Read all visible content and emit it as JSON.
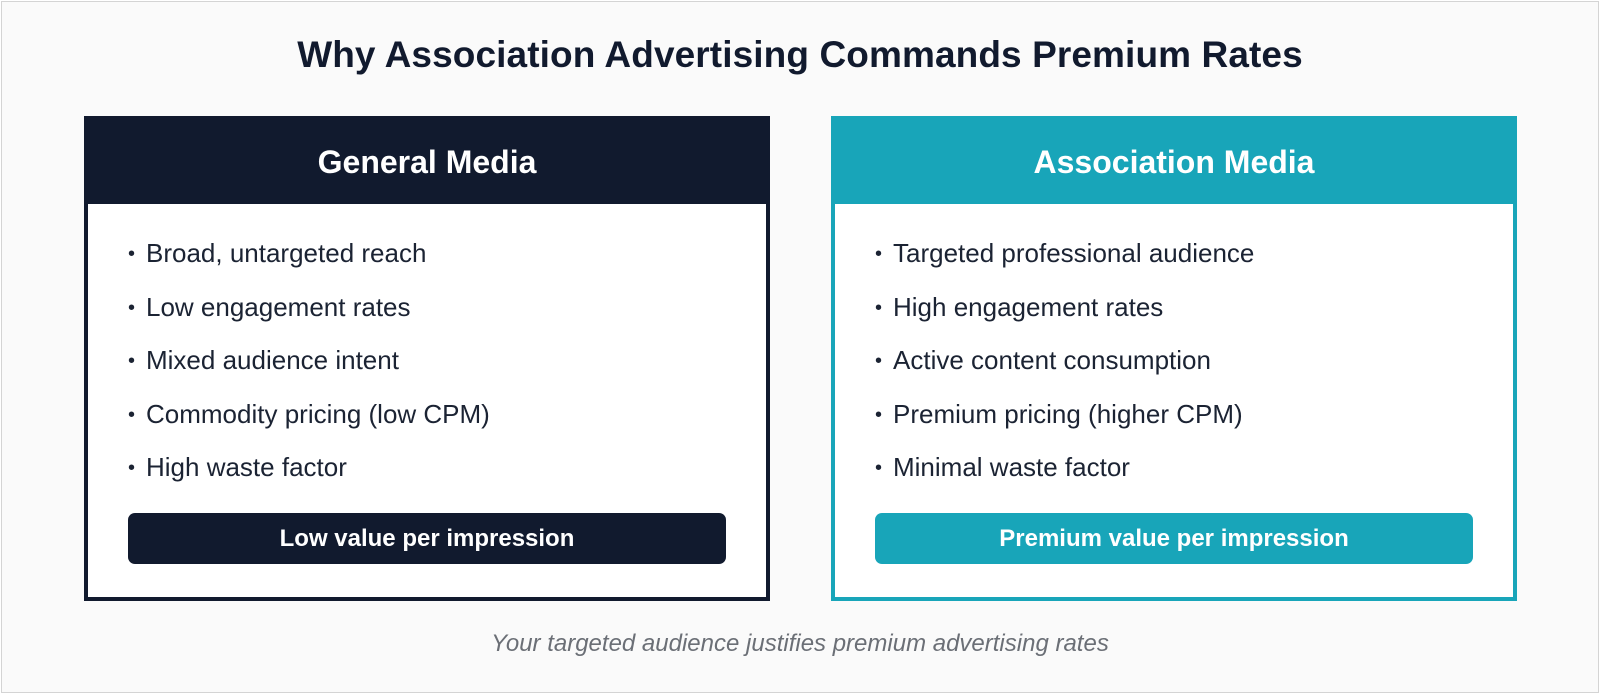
{
  "title": "Why Association Advertising Commands Premium Rates",
  "colors": {
    "general": "#111a2e",
    "association": "#18a5b9"
  },
  "general": {
    "heading": "General Media",
    "points": [
      "Broad, untargeted reach",
      "Low engagement rates",
      "Mixed audience intent",
      "Commodity pricing (low CPM)",
      "High waste factor"
    ],
    "verdict": "Low value per impression"
  },
  "association": {
    "heading": "Association Media",
    "points": [
      "Targeted professional audience",
      "High engagement rates",
      "Active content consumption",
      "Premium pricing (higher CPM)",
      "Minimal waste factor"
    ],
    "verdict": "Premium value per impression"
  },
  "caption": "Your targeted audience justifies premium advertising rates"
}
